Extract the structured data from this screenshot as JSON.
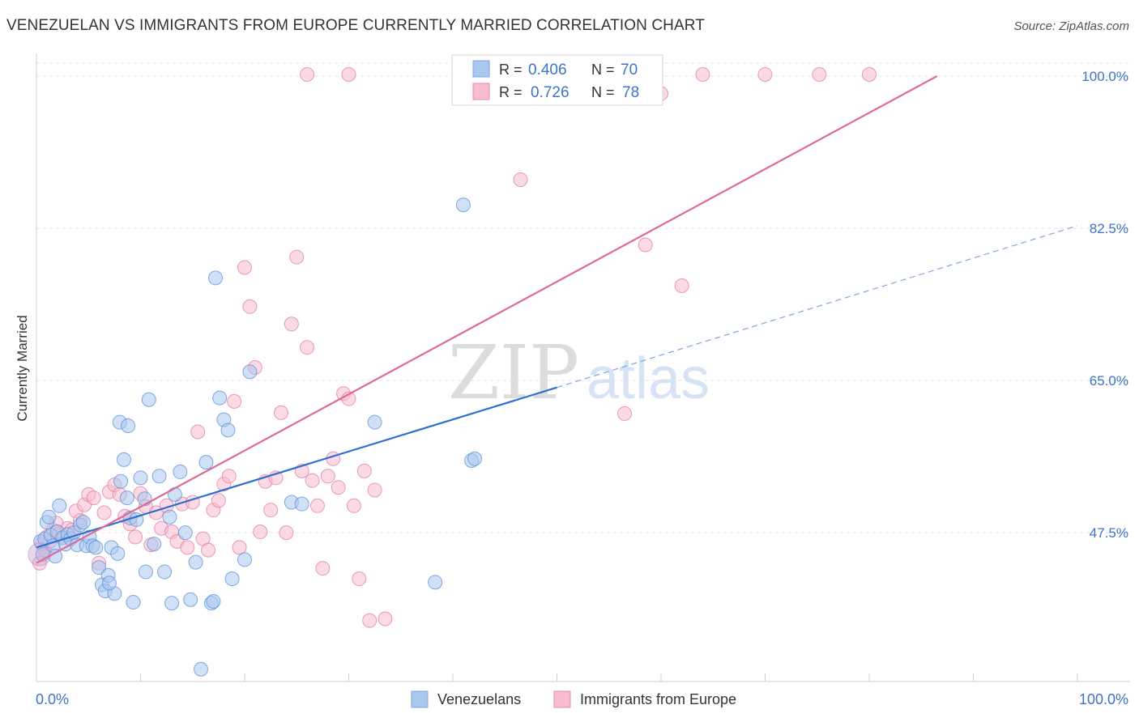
{
  "header": {
    "title": "VENEZUELAN VS IMMIGRANTS FROM EUROPE CURRENTLY MARRIED CORRELATION CHART",
    "source": "Source: ZipAtlas.com"
  },
  "watermark": {
    "zip": "ZIP",
    "atlas": "atlas"
  },
  "legend_box": {
    "rows": [
      {
        "r_label": "R =",
        "r_value": "0.406",
        "n_label": "N =",
        "n_value": "70",
        "color": "#a9c6ef"
      },
      {
        "r_label": "R =",
        "r_value": "0.726",
        "n_label": "N =",
        "n_value": "78",
        "color": "#f6b6c9"
      }
    ]
  },
  "chart_data": {
    "type": "scatter",
    "title": "VENEZUELAN VS IMMIGRANTS FROM EUROPE CURRENTLY MARRIED CORRELATION CHART",
    "xlabel": "",
    "ylabel": "Currently Married",
    "xlim": [
      0,
      100
    ],
    "ylim": [
      31.5,
      101.5
    ],
    "x_tick_labels": [
      "0.0%",
      "100.0%"
    ],
    "y_ticks": [
      47.5,
      65.0,
      82.5,
      100.0
    ],
    "y_tick_labels": [
      "47.5%",
      "65.0%",
      "82.5%",
      "100.0%"
    ],
    "grid": true,
    "legend_position": "bottom",
    "series": [
      {
        "name": "Venezuelans",
        "color": "#5b8fd6",
        "fill": "#aac7f0",
        "trend": {
          "x": [
            0,
            50
          ],
          "y": [
            45.8,
            64.2
          ],
          "dashed_extension_to": [
            100,
            82.8
          ]
        },
        "points": [
          [
            0.4,
            46.5
          ],
          [
            0.6,
            45.0
          ],
          [
            0.8,
            46.8
          ],
          [
            1.0,
            48.7
          ],
          [
            1.2,
            49.3
          ],
          [
            1.4,
            47.2
          ],
          [
            1.6,
            46.0
          ],
          [
            1.8,
            44.8
          ],
          [
            2.0,
            47.6
          ],
          [
            2.2,
            50.6
          ],
          [
            2.5,
            46.9
          ],
          [
            2.8,
            46.2
          ],
          [
            3.0,
            47.3
          ],
          [
            3.3,
            46.8
          ],
          [
            3.6,
            47.5
          ],
          [
            3.9,
            46.1
          ],
          [
            4.2,
            48.4
          ],
          [
            4.5,
            48.7
          ],
          [
            4.8,
            46.0
          ],
          [
            5.1,
            47.0
          ],
          [
            5.4,
            46.0
          ],
          [
            5.7,
            45.8
          ],
          [
            6.0,
            43.5
          ],
          [
            6.3,
            41.5
          ],
          [
            6.6,
            40.8
          ],
          [
            6.9,
            42.6
          ],
          [
            7.2,
            45.8
          ],
          [
            7.5,
            40.5
          ],
          [
            7.8,
            45.1
          ],
          [
            8.1,
            53.4
          ],
          [
            8.4,
            55.9
          ],
          [
            8.7,
            51.5
          ],
          [
            9.0,
            49.2
          ],
          [
            9.3,
            39.5
          ],
          [
            9.6,
            49.0
          ],
          [
            10.0,
            53.8
          ],
          [
            10.4,
            51.4
          ],
          [
            10.8,
            62.8
          ],
          [
            11.3,
            46.2
          ],
          [
            11.8,
            54.0
          ],
          [
            12.3,
            43.0
          ],
          [
            12.8,
            49.3
          ],
          [
            13.3,
            51.9
          ],
          [
            13.8,
            54.5
          ],
          [
            14.3,
            47.5
          ],
          [
            14.8,
            39.8
          ],
          [
            15.3,
            44.1
          ],
          [
            15.8,
            31.8
          ],
          [
            16.3,
            55.6
          ],
          [
            16.8,
            39.4
          ],
          [
            17.2,
            76.8
          ],
          [
            17.6,
            63.0
          ],
          [
            18.0,
            60.5
          ],
          [
            18.4,
            59.3
          ],
          [
            18.8,
            42.2
          ],
          [
            8.0,
            60.2
          ],
          [
            8.8,
            59.8
          ],
          [
            7.0,
            41.7
          ],
          [
            10.5,
            43.0
          ],
          [
            13.0,
            39.4
          ],
          [
            20.0,
            44.4
          ],
          [
            20.5,
            66.0
          ],
          [
            24.5,
            51.0
          ],
          [
            25.5,
            50.8
          ],
          [
            32.5,
            60.2
          ],
          [
            38.3,
            41.8
          ],
          [
            41.0,
            85.2
          ],
          [
            41.8,
            55.8
          ],
          [
            42.1,
            56.0
          ],
          [
            17.0,
            39.6
          ]
        ]
      },
      {
        "name": "Immigrants from Europe",
        "color": "#e07ca1",
        "fill": "#f7bccf",
        "trend": {
          "x": [
            0,
            86.5
          ],
          "y": [
            44.0,
            100.0
          ]
        },
        "points": [
          [
            0.3,
            44.0
          ],
          [
            0.5,
            46.2
          ],
          [
            0.8,
            45.5
          ],
          [
            1.0,
            47.0
          ],
          [
            1.3,
            46.5
          ],
          [
            1.6,
            47.8
          ],
          [
            1.9,
            48.6
          ],
          [
            2.2,
            47.4
          ],
          [
            2.6,
            47.0
          ],
          [
            3.0,
            48.0
          ],
          [
            3.4,
            47.8
          ],
          [
            3.8,
            50.0
          ],
          [
            4.2,
            48.9
          ],
          [
            4.6,
            50.7
          ],
          [
            5.0,
            51.9
          ],
          [
            5.5,
            51.5
          ],
          [
            6.0,
            44.0
          ],
          [
            6.5,
            49.8
          ],
          [
            7.0,
            52.2
          ],
          [
            7.5,
            53.0
          ],
          [
            8.0,
            51.9
          ],
          [
            8.5,
            49.4
          ],
          [
            9.0,
            48.5
          ],
          [
            9.5,
            47.0
          ],
          [
            10.0,
            52.0
          ],
          [
            10.5,
            50.5
          ],
          [
            11.0,
            46.1
          ],
          [
            11.5,
            49.8
          ],
          [
            12.0,
            48.0
          ],
          [
            12.5,
            50.6
          ],
          [
            13.0,
            47.6
          ],
          [
            13.5,
            46.5
          ],
          [
            14.0,
            50.8
          ],
          [
            14.5,
            45.8
          ],
          [
            15.0,
            51.0
          ],
          [
            15.5,
            59.1
          ],
          [
            16.0,
            46.8
          ],
          [
            16.5,
            45.5
          ],
          [
            17.0,
            50.1
          ],
          [
            17.5,
            51.2
          ],
          [
            18.0,
            53.1
          ],
          [
            18.5,
            54.0
          ],
          [
            19.0,
            62.6
          ],
          [
            19.5,
            45.8
          ],
          [
            20.0,
            78.0
          ],
          [
            20.5,
            73.5
          ],
          [
            21.0,
            66.5
          ],
          [
            21.5,
            47.6
          ],
          [
            22.0,
            53.4
          ],
          [
            22.5,
            50.1
          ],
          [
            23.0,
            53.8
          ],
          [
            23.5,
            61.3
          ],
          [
            24.0,
            47.5
          ],
          [
            24.5,
            71.5
          ],
          [
            25.0,
            79.2
          ],
          [
            25.5,
            54.6
          ],
          [
            26.0,
            68.8
          ],
          [
            26.5,
            53.5
          ],
          [
            27.0,
            50.6
          ],
          [
            27.5,
            43.4
          ],
          [
            28.0,
            54.0
          ],
          [
            28.5,
            56.0
          ],
          [
            29.0,
            52.7
          ],
          [
            29.5,
            63.5
          ],
          [
            30.0,
            62.9
          ],
          [
            30.5,
            50.6
          ],
          [
            31.0,
            42.2
          ],
          [
            31.5,
            54.6
          ],
          [
            32.0,
            37.4
          ],
          [
            32.5,
            52.4
          ],
          [
            33.5,
            37.6
          ],
          [
            46.5,
            88.1
          ],
          [
            56.5,
            61.2
          ],
          [
            58.5,
            80.6
          ],
          [
            62.0,
            75.9
          ],
          [
            26.0,
            100.2
          ],
          [
            44.5,
            100.2
          ],
          [
            75.2,
            100.2
          ]
        ]
      }
    ]
  },
  "bottom_legend": {
    "items": [
      {
        "label": "Venezuelans",
        "color": "#aac7f0"
      },
      {
        "label": "Immigrants from Europe",
        "color": "#f7bccf"
      }
    ]
  },
  "extra_points": {
    "pink_top": [
      [
        30.0,
        100.2
      ],
      [
        41.2,
        100.2
      ],
      [
        47.0,
        100.2
      ],
      [
        53.0,
        100.2
      ],
      [
        64.0,
        100.2
      ],
      [
        70.0,
        100.2
      ],
      [
        80.0,
        100.2
      ],
      [
        60.0,
        98.0
      ]
    ]
  }
}
